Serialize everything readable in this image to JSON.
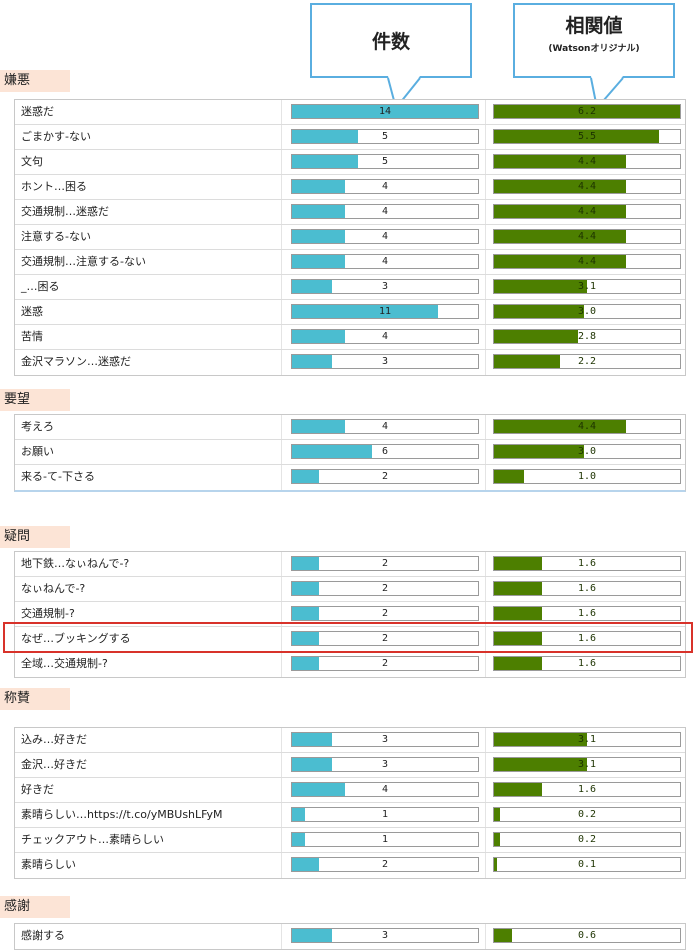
{
  "header": {
    "count_title": "件数",
    "corr_title": "相関値",
    "corr_subtitle": "(Watsonオリジナル)"
  },
  "colors": {
    "count_bar": "#4bbdd0",
    "corr_bar": "#4d7f00",
    "section_bg": "#fce4d6",
    "highlight": "#d8322a",
    "callout_border": "#5aaee0"
  },
  "scales": {
    "count_max": 14,
    "corr_max": 6.2
  },
  "sections": [
    {
      "title": "嫌悪",
      "rows": [
        {
          "label": "迷惑だ",
          "count": 14,
          "count_text": "14",
          "corr": 6.2,
          "corr_text": "6.2"
        },
        {
          "label": "ごまかす-ない",
          "count": 5,
          "count_text": "5",
          "corr": 5.5,
          "corr_text": "5.5"
        },
        {
          "label": "文句",
          "count": 5,
          "count_text": "5",
          "corr": 4.4,
          "corr_text": "4.4"
        },
        {
          "label": "ホント…困る",
          "count": 4,
          "count_text": "4",
          "corr": 4.4,
          "corr_text": "4.4"
        },
        {
          "label": "交通規制…迷惑だ",
          "count": 4,
          "count_text": "4",
          "corr": 4.4,
          "corr_text": "4.4"
        },
        {
          "label": "注意する-ない",
          "count": 4,
          "count_text": "4",
          "corr": 4.4,
          "corr_text": "4.4"
        },
        {
          "label": "交通規制…注意する-ない",
          "count": 4,
          "count_text": "4",
          "corr": 4.4,
          "corr_text": "4.4"
        },
        {
          "label": "_…困る",
          "count": 3,
          "count_text": "3",
          "corr": 3.1,
          "corr_text": "3.1"
        },
        {
          "label": "迷惑",
          "count": 11,
          "count_text": "11",
          "corr": 3.0,
          "corr_text": "3.0"
        },
        {
          "label": "苦情",
          "count": 4,
          "count_text": "4",
          "corr": 2.8,
          "corr_text": "2.8"
        },
        {
          "label": "金沢マラソン…迷惑だ",
          "count": 3,
          "count_text": "3",
          "corr": 2.2,
          "corr_text": "2.2"
        }
      ]
    },
    {
      "title": "要望",
      "rows": [
        {
          "label": "考えろ",
          "count": 4,
          "count_text": "4",
          "corr": 4.4,
          "corr_text": "4.4"
        },
        {
          "label": "お願い",
          "count": 6,
          "count_text": "6",
          "corr": 3.0,
          "corr_text": "3.0"
        },
        {
          "label": "来る-て-下さる",
          "count": 2,
          "count_text": "2",
          "corr": 1.0,
          "corr_text": "1.0"
        }
      ]
    },
    {
      "title": "疑問",
      "rows": [
        {
          "label": "地下鉄…なぃねんで-?",
          "count": 2,
          "count_text": "2",
          "corr": 1.6,
          "corr_text": "1.6"
        },
        {
          "label": "なぃねんで-?",
          "count": 2,
          "count_text": "2",
          "corr": 1.6,
          "corr_text": "1.6"
        },
        {
          "label": "交通規制-?",
          "count": 2,
          "count_text": "2",
          "corr": 1.6,
          "corr_text": "1.6"
        },
        {
          "label": "なぜ…ブッキングする",
          "count": 2,
          "count_text": "2",
          "corr": 1.6,
          "corr_text": "1.6"
        },
        {
          "label": "全域…交通規制-?",
          "count": 2,
          "count_text": "2",
          "corr": 1.6,
          "corr_text": "1.6"
        }
      ]
    },
    {
      "title": "称賛",
      "rows": [
        {
          "label": "込み…好きだ",
          "count": 3,
          "count_text": "3",
          "corr": 3.1,
          "corr_text": "3.1"
        },
        {
          "label": "金沢…好きだ",
          "count": 3,
          "count_text": "3",
          "corr": 3.1,
          "corr_text": "3.1"
        },
        {
          "label": "好きだ",
          "count": 4,
          "count_text": "4",
          "corr": 1.6,
          "corr_text": "1.6"
        },
        {
          "label": "素晴らしい…https://t.co/yMBUshLFyM",
          "count": 1,
          "count_text": "1",
          "corr": 0.2,
          "corr_text": "0.2"
        },
        {
          "label": "チェックアウト…素晴らしい",
          "count": 1,
          "count_text": "1",
          "corr": 0.2,
          "corr_text": "0.2"
        },
        {
          "label": "素晴らしい",
          "count": 2,
          "count_text": "2",
          "corr": 0.1,
          "corr_text": "0.1"
        }
      ]
    },
    {
      "title": "感謝",
      "rows": [
        {
          "label": "感謝する",
          "count": 3,
          "count_text": "3",
          "corr": 0.6,
          "corr_text": "0.6"
        }
      ]
    }
  ]
}
